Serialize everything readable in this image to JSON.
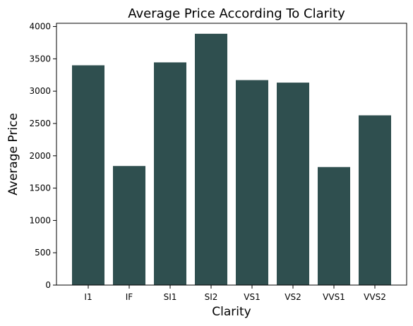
{
  "chart_data": {
    "type": "bar",
    "title": "Average Price According To Clarity",
    "xlabel": "Clarity",
    "ylabel": "Average Price",
    "categories": [
      "I1",
      "IF",
      "SI1",
      "SI2",
      "VS1",
      "VS2",
      "VVS1",
      "VVS2"
    ],
    "values": [
      3400,
      1842,
      3445,
      3888,
      3171,
      3132,
      1826,
      2626
    ],
    "ylim": [
      0,
      4050
    ],
    "yticks": [
      0,
      500,
      1000,
      1500,
      2000,
      2500,
      3000,
      3500,
      4000
    ],
    "grid": false,
    "legend": "none",
    "bar_color": "#2f4f4f"
  }
}
